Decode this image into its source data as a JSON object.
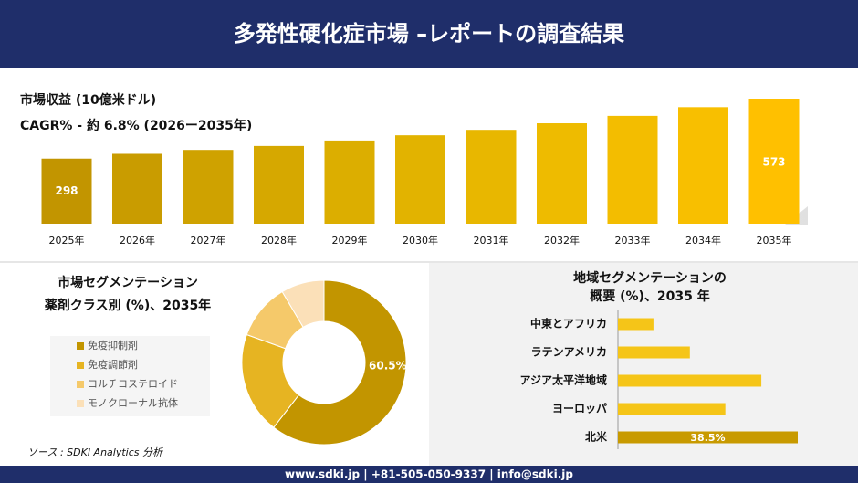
{
  "header": {
    "title": "多発性硬化症市場 –レポートの調査結果"
  },
  "chart_data": [
    {
      "type": "bar",
      "title": "市場収益 (10億米ドル)",
      "subtitle": "CAGR% - 約 6.8% (2026ー2035年)",
      "categories": [
        "2025年",
        "2026年",
        "2027年",
        "2028年",
        "2029年",
        "2030年",
        "2031年",
        "2032年",
        "2033年",
        "2034年",
        "2035年"
      ],
      "values": [
        298,
        320,
        338,
        356,
        381,
        405,
        430,
        460,
        494,
        534,
        573
      ],
      "colors": [
        "#c29500",
        "#c99c00",
        "#cfa200",
        "#d6a800",
        "#dcae00",
        "#e2b300",
        "#e8b700",
        "#eebb00",
        "#f3bd00",
        "#f8bf00",
        "#ffc000"
      ]
    },
    {
      "type": "donut",
      "title": [
        "市場セグメンテーション",
        "薬剤クラス別 (%)、2035年"
      ],
      "categories": [
        "免疫抑制剤",
        "免疫調節剤",
        "コルチコステロイド",
        "モノクローナル抗体"
      ],
      "values": [
        60.5,
        20,
        11,
        8.5
      ],
      "value_labels": [
        "60.5%",
        null,
        null,
        null
      ],
      "colors": [
        "#c29500",
        "#e6b422",
        "#f5c96a",
        "#fbe0b8"
      ]
    },
    {
      "type": "hbar",
      "title": [
        "地域セグメンテーションの",
        "概要 (%)、2035 年"
      ],
      "categories": [
        "中東とアフリカ",
        "ラテンアメリカ",
        "アジア太平洋地域",
        "ヨーロッパ",
        "北米"
      ],
      "values": [
        7.6,
        15.4,
        30.7,
        23,
        38.5
      ],
      "value_labels": [
        null,
        null,
        null,
        null,
        "38.5%"
      ],
      "colors": [
        "#f5c518",
        "#f5c518",
        "#f5c518",
        "#f5c518",
        "#c89a00"
      ]
    }
  ],
  "source": "ソース : SDKI Analytics 分析",
  "footer": "www.sdki.jp | +81-505-050-9337 | info@sdki.jp"
}
